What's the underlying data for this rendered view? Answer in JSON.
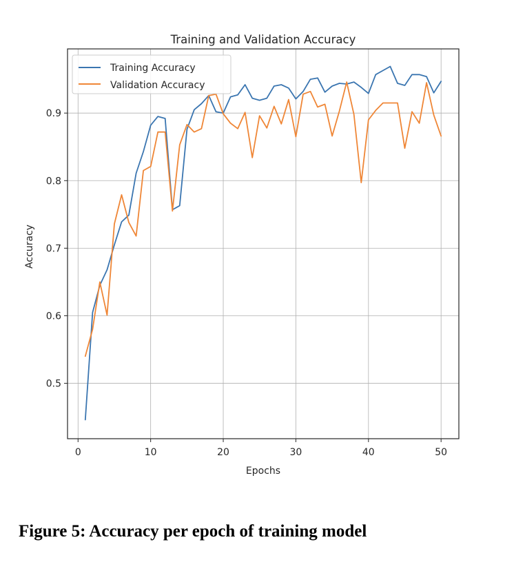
{
  "figure": {
    "caption": "Figure 5: Accuracy per epoch of training model"
  },
  "chart_data": {
    "type": "line",
    "title": "Training and Validation Accuracy",
    "xlabel": "Epochs",
    "ylabel": "Accuracy",
    "xlim": [
      -1.45,
      52.45
    ],
    "ylim": [
      0.418,
      0.995
    ],
    "xticks": [
      0,
      10,
      20,
      30,
      40,
      50
    ],
    "yticks": [
      0.5,
      0.6,
      0.7,
      0.8,
      0.9
    ],
    "xtick_labels": [
      "0",
      "10",
      "20",
      "30",
      "40",
      "50"
    ],
    "ytick_labels": [
      "0.5",
      "0.6",
      "0.7",
      "0.8",
      "0.9"
    ],
    "grid": true,
    "legend_position": "upper-left",
    "x": [
      1,
      2,
      3,
      4,
      5,
      6,
      7,
      8,
      9,
      10,
      11,
      12,
      13,
      14,
      15,
      16,
      17,
      18,
      19,
      20,
      21,
      22,
      23,
      24,
      25,
      26,
      27,
      28,
      29,
      30,
      31,
      32,
      33,
      34,
      35,
      36,
      37,
      38,
      39,
      40,
      41,
      42,
      43,
      44,
      45,
      46,
      47,
      48,
      49,
      50
    ],
    "series": [
      {
        "name": "Training Accuracy",
        "color": "#3a75b0",
        "values": [
          0.446,
          0.605,
          0.645,
          0.668,
          0.705,
          0.739,
          0.749,
          0.811,
          0.843,
          0.882,
          0.895,
          0.892,
          0.757,
          0.763,
          0.876,
          0.905,
          0.914,
          0.926,
          0.902,
          0.9,
          0.924,
          0.927,
          0.942,
          0.922,
          0.919,
          0.922,
          0.94,
          0.942,
          0.937,
          0.921,
          0.932,
          0.95,
          0.952,
          0.931,
          0.94,
          0.944,
          0.943,
          0.946,
          0.938,
          0.929,
          0.957,
          0.963,
          0.969,
          0.944,
          0.941,
          0.957,
          0.957,
          0.954,
          0.93,
          0.947
        ]
      },
      {
        "name": "Validation Accuracy",
        "color": "#ef8636",
        "values": [
          0.54,
          0.58,
          0.65,
          0.601,
          0.736,
          0.779,
          0.738,
          0.718,
          0.815,
          0.821,
          0.872,
          0.872,
          0.755,
          0.853,
          0.883,
          0.872,
          0.877,
          0.926,
          0.928,
          0.899,
          0.885,
          0.877,
          0.901,
          0.834,
          0.896,
          0.878,
          0.91,
          0.884,
          0.92,
          0.865,
          0.928,
          0.932,
          0.909,
          0.913,
          0.866,
          0.903,
          0.946,
          0.898,
          0.797,
          0.89,
          0.904,
          0.915,
          0.915,
          0.915,
          0.848,
          0.902,
          0.885,
          0.945,
          0.897,
          0.866
        ]
      }
    ]
  }
}
